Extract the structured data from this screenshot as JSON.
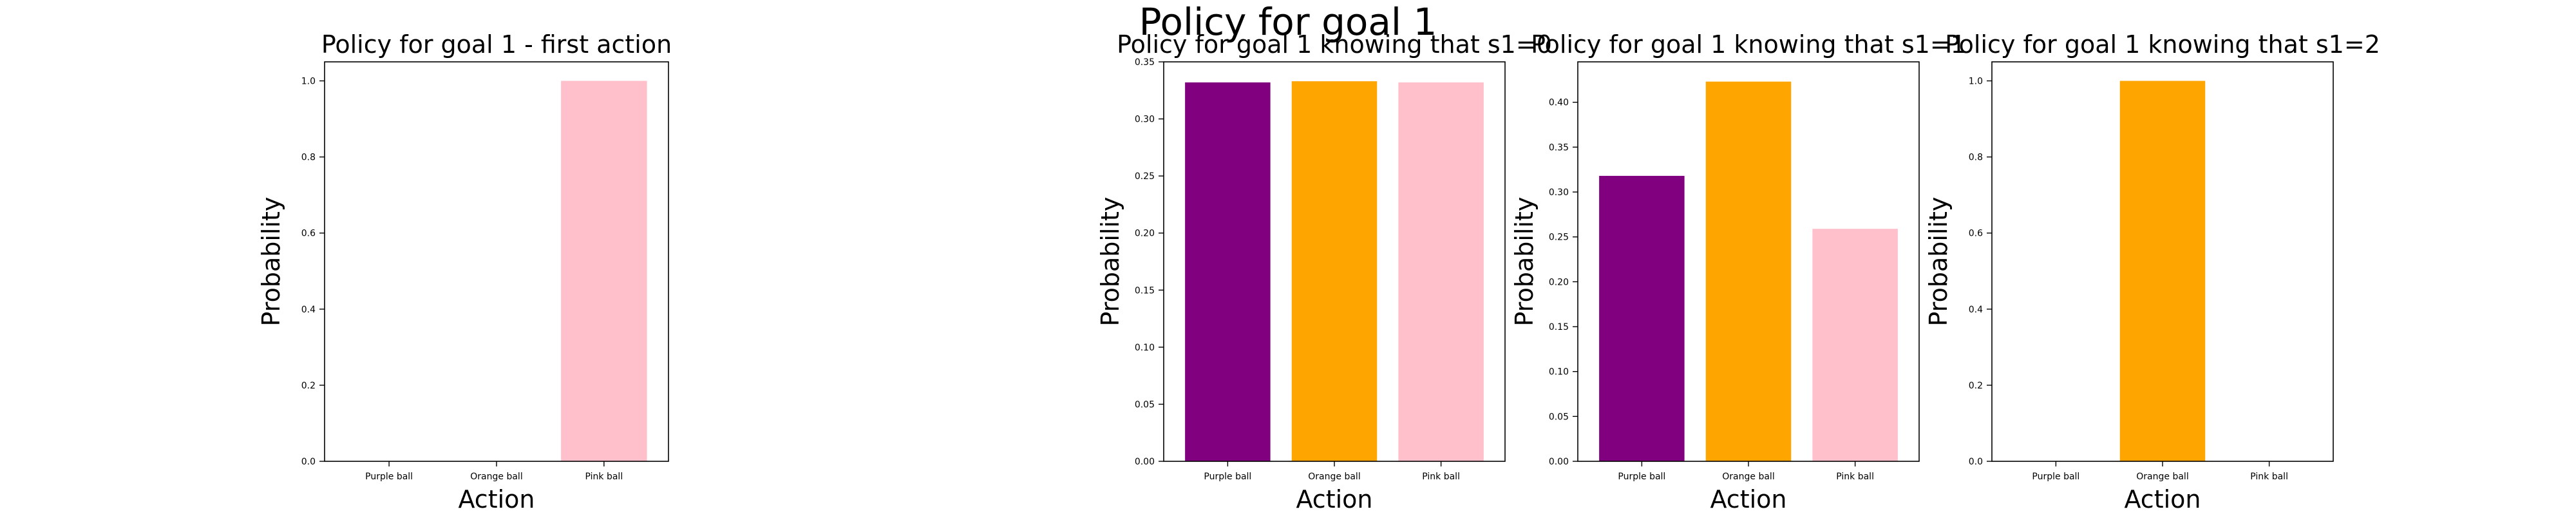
{
  "figure": {
    "suptitle": "Policy for goal 1"
  },
  "chart_data": [
    {
      "type": "bar",
      "title": "Policy for goal 1 - first action",
      "xlabel": "Action",
      "ylabel": "Probability",
      "categories": [
        "Purple ball",
        "Orange ball",
        "Pink ball"
      ],
      "values": [
        0.0,
        0.0,
        1.0
      ],
      "colors": [
        "#800080",
        "#FFA500",
        "#FFC0CB"
      ],
      "ylim": [
        0,
        1.05
      ],
      "yticks": [
        "0.0",
        "0.2",
        "0.4",
        "0.6",
        "0.8",
        "1.0"
      ],
      "grid": false
    },
    {
      "type": "bar",
      "title": "Policy for goal 1 knowing that s1=0",
      "xlabel": "Action",
      "ylabel": "Probability",
      "categories": [
        "Purple ball",
        "Orange ball",
        "Pink ball"
      ],
      "values": [
        0.332,
        0.333,
        0.332
      ],
      "colors": [
        "#800080",
        "#FFA500",
        "#FFC0CB"
      ],
      "ylim": [
        0,
        0.35
      ],
      "yticks": [
        "0.00",
        "0.05",
        "0.10",
        "0.15",
        "0.20",
        "0.25",
        "0.30",
        "0.35"
      ],
      "grid": false
    },
    {
      "type": "bar",
      "title": "Policy for goal 1 knowing that s1=1",
      "xlabel": "Action",
      "ylabel": "Probability",
      "categories": [
        "Purple ball",
        "Orange ball",
        "Pink ball"
      ],
      "values": [
        0.318,
        0.423,
        0.259
      ],
      "colors": [
        "#800080",
        "#FFA500",
        "#FFC0CB"
      ],
      "ylim": [
        0,
        0.445
      ],
      "yticks": [
        "0.00",
        "0.05",
        "0.10",
        "0.15",
        "0.20",
        "0.25",
        "0.30",
        "0.35",
        "0.40"
      ],
      "grid": false
    },
    {
      "type": "bar",
      "title": "Policy for goal 1 knowing that s1=2",
      "xlabel": "Action",
      "ylabel": "Probability",
      "categories": [
        "Purple ball",
        "Orange ball",
        "Pink ball"
      ],
      "values": [
        0.0,
        1.0,
        0.0
      ],
      "colors": [
        "#800080",
        "#FFA500",
        "#FFC0CB"
      ],
      "ylim": [
        0,
        1.05
      ],
      "yticks": [
        "0.0",
        "0.2",
        "0.4",
        "0.6",
        "0.8",
        "1.0"
      ],
      "grid": false
    }
  ]
}
